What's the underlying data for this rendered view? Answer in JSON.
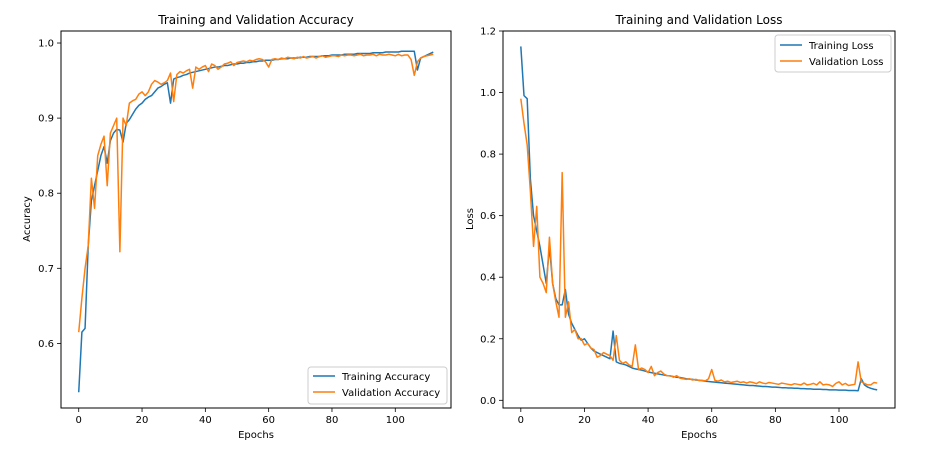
{
  "colors": {
    "train": "#1f77b4",
    "val": "#ff7f0e",
    "frame": "#000000",
    "legend_border": "#cccccc"
  },
  "chart_data": [
    {
      "type": "line",
      "title": "Training and Validation Accuracy",
      "xlabel": "Epochs",
      "ylabel": "Accuracy",
      "xlim": [
        -5.6,
        117.6
      ],
      "ylim": [
        0.514,
        1.016
      ],
      "xticks": [
        0,
        20,
        40,
        60,
        80,
        100
      ],
      "xtick_labels": [
        "0",
        "20",
        "40",
        "60",
        "80",
        "100"
      ],
      "yticks": [
        0.6,
        0.7,
        0.8,
        0.9,
        1.0
      ],
      "ytick_labels": [
        "0.6",
        "0.7",
        "0.8",
        "0.9",
        "1.0"
      ],
      "legend_loc": "lower-right",
      "series": [
        {
          "name": "Training Accuracy",
          "x": [
            0,
            1,
            2,
            3,
            4,
            5,
            6,
            7,
            8,
            9,
            10,
            11,
            12,
            13,
            14,
            15,
            16,
            17,
            18,
            19,
            20,
            21,
            22,
            23,
            24,
            25,
            26,
            27,
            28,
            29,
            30,
            31,
            32,
            33,
            34,
            35,
            36,
            37,
            38,
            39,
            40,
            41,
            42,
            43,
            44,
            45,
            46,
            47,
            48,
            49,
            50,
            51,
            52,
            53,
            54,
            55,
            56,
            57,
            58,
            59,
            60,
            61,
            62,
            63,
            64,
            65,
            66,
            67,
            68,
            69,
            70,
            71,
            72,
            73,
            74,
            75,
            76,
            77,
            78,
            79,
            80,
            81,
            82,
            83,
            84,
            85,
            86,
            87,
            88,
            89,
            90,
            91,
            92,
            93,
            94,
            95,
            96,
            97,
            98,
            99,
            100,
            101,
            102,
            103,
            104,
            105,
            106,
            107,
            108,
            109,
            110,
            111,
            112
          ],
          "y": [
            0.535,
            0.615,
            0.62,
            0.73,
            0.79,
            0.81,
            0.83,
            0.85,
            0.862,
            0.84,
            0.87,
            0.88,
            0.885,
            0.884,
            0.868,
            0.893,
            0.898,
            0.905,
            0.912,
            0.917,
            0.92,
            0.925,
            0.928,
            0.93,
            0.935,
            0.94,
            0.942,
            0.945,
            0.947,
            0.92,
            0.952,
            0.954,
            0.955,
            0.957,
            0.958,
            0.96,
            0.961,
            0.962,
            0.963,
            0.964,
            0.965,
            0.966,
            0.967,
            0.968,
            0.968,
            0.969,
            0.97,
            0.97,
            0.971,
            0.972,
            0.972,
            0.973,
            0.973,
            0.974,
            0.974,
            0.975,
            0.975,
            0.976,
            0.976,
            0.977,
            0.977,
            0.977,
            0.978,
            0.978,
            0.979,
            0.979,
            0.979,
            0.98,
            0.98,
            0.98,
            0.981,
            0.981,
            0.981,
            0.982,
            0.982,
            0.982,
            0.982,
            0.983,
            0.983,
            0.983,
            0.984,
            0.984,
            0.984,
            0.984,
            0.985,
            0.985,
            0.985,
            0.985,
            0.986,
            0.986,
            0.986,
            0.986,
            0.986,
            0.987,
            0.987,
            0.987,
            0.987,
            0.988,
            0.988,
            0.988,
            0.988,
            0.988,
            0.989,
            0.989,
            0.989,
            0.989,
            0.989,
            0.964,
            0.98,
            0.982,
            0.984,
            0.986,
            0.988
          ]
        },
        {
          "name": "Validation Accuracy",
          "x": [
            0,
            1,
            2,
            3,
            4,
            5,
            6,
            7,
            8,
            9,
            10,
            11,
            12,
            13,
            14,
            15,
            16,
            17,
            18,
            19,
            20,
            21,
            22,
            23,
            24,
            25,
            26,
            27,
            28,
            29,
            30,
            31,
            32,
            33,
            34,
            35,
            36,
            37,
            38,
            39,
            40,
            41,
            42,
            43,
            44,
            45,
            46,
            47,
            48,
            49,
            50,
            51,
            52,
            53,
            54,
            55,
            56,
            57,
            58,
            59,
            60,
            61,
            62,
            63,
            64,
            65,
            66,
            67,
            68,
            69,
            70,
            71,
            72,
            73,
            74,
            75,
            76,
            77,
            78,
            79,
            80,
            81,
            82,
            83,
            84,
            85,
            86,
            87,
            88,
            89,
            90,
            91,
            92,
            93,
            94,
            95,
            96,
            97,
            98,
            99,
            100,
            101,
            102,
            103,
            104,
            105,
            106,
            107,
            108,
            109,
            110,
            111,
            112
          ],
          "y": [
            0.615,
            0.66,
            0.7,
            0.73,
            0.82,
            0.78,
            0.85,
            0.865,
            0.876,
            0.81,
            0.88,
            0.89,
            0.9,
            0.722,
            0.9,
            0.89,
            0.92,
            0.923,
            0.925,
            0.932,
            0.935,
            0.93,
            0.935,
            0.945,
            0.95,
            0.948,
            0.945,
            0.947,
            0.95,
            0.96,
            0.922,
            0.958,
            0.962,
            0.96,
            0.963,
            0.965,
            0.94,
            0.968,
            0.965,
            0.968,
            0.97,
            0.962,
            0.972,
            0.97,
            0.965,
            0.968,
            0.972,
            0.973,
            0.975,
            0.97,
            0.974,
            0.975,
            0.976,
            0.975,
            0.977,
            0.976,
            0.978,
            0.979,
            0.978,
            0.975,
            0.968,
            0.978,
            0.979,
            0.978,
            0.98,
            0.979,
            0.981,
            0.98,
            0.979,
            0.981,
            0.98,
            0.982,
            0.98,
            0.981,
            0.982,
            0.98,
            0.982,
            0.983,
            0.981,
            0.982,
            0.983,
            0.983,
            0.982,
            0.984,
            0.983,
            0.984,
            0.984,
            0.983,
            0.984,
            0.985,
            0.983,
            0.984,
            0.984,
            0.985,
            0.983,
            0.985,
            0.984,
            0.984,
            0.985,
            0.984,
            0.983,
            0.985,
            0.983,
            0.984,
            0.984,
            0.978,
            0.957,
            0.975,
            0.98,
            0.982,
            0.983,
            0.984,
            0.985
          ]
        }
      ]
    },
    {
      "type": "line",
      "title": "Training and Validation Loss",
      "xlabel": "Epochs",
      "ylabel": "Loss",
      "xlim": [
        -5.6,
        117.6
      ],
      "ylim": [
        -0.025,
        1.2
      ],
      "xticks": [
        0,
        20,
        40,
        60,
        80,
        100
      ],
      "xtick_labels": [
        "0",
        "20",
        "40",
        "60",
        "80",
        "100"
      ],
      "yticks": [
        0.0,
        0.2,
        0.4,
        0.6,
        0.8,
        1.0,
        1.2
      ],
      "ytick_labels": [
        "0.0",
        "0.2",
        "0.4",
        "0.6",
        "0.8",
        "1.0",
        "1.2"
      ],
      "legend_loc": "upper-right",
      "series": [
        {
          "name": "Training Loss",
          "x": [
            0,
            1,
            2,
            3,
            4,
            5,
            6,
            7,
            8,
            9,
            10,
            11,
            12,
            13,
            14,
            15,
            16,
            17,
            18,
            19,
            20,
            21,
            22,
            23,
            24,
            25,
            26,
            27,
            28,
            29,
            30,
            31,
            32,
            33,
            34,
            35,
            36,
            37,
            38,
            39,
            40,
            41,
            42,
            43,
            44,
            45,
            46,
            47,
            48,
            49,
            50,
            51,
            52,
            53,
            54,
            55,
            56,
            57,
            58,
            59,
            60,
            61,
            62,
            63,
            64,
            65,
            66,
            67,
            68,
            69,
            70,
            71,
            72,
            73,
            74,
            75,
            76,
            77,
            78,
            79,
            80,
            81,
            82,
            83,
            84,
            85,
            86,
            87,
            88,
            89,
            90,
            91,
            92,
            93,
            94,
            95,
            96,
            97,
            98,
            99,
            100,
            101,
            102,
            103,
            104,
            105,
            106,
            107,
            108,
            109,
            110,
            111,
            112
          ],
          "y": [
            1.15,
            0.99,
            0.98,
            0.72,
            0.6,
            0.55,
            0.5,
            0.44,
            0.38,
            0.5,
            0.38,
            0.33,
            0.31,
            0.31,
            0.36,
            0.28,
            0.25,
            0.23,
            0.21,
            0.195,
            0.2,
            0.185,
            0.17,
            0.16,
            0.155,
            0.15,
            0.145,
            0.14,
            0.135,
            0.225,
            0.125,
            0.12,
            0.118,
            0.115,
            0.11,
            0.105,
            0.102,
            0.1,
            0.098,
            0.095,
            0.092,
            0.09,
            0.088,
            0.086,
            0.084,
            0.082,
            0.08,
            0.079,
            0.077,
            0.075,
            0.074,
            0.072,
            0.07,
            0.069,
            0.068,
            0.066,
            0.065,
            0.064,
            0.062,
            0.061,
            0.06,
            0.059,
            0.058,
            0.057,
            0.056,
            0.055,
            0.054,
            0.053,
            0.052,
            0.051,
            0.05,
            0.049,
            0.048,
            0.048,
            0.047,
            0.046,
            0.045,
            0.045,
            0.044,
            0.043,
            0.043,
            0.042,
            0.041,
            0.041,
            0.04,
            0.04,
            0.039,
            0.039,
            0.038,
            0.038,
            0.037,
            0.037,
            0.036,
            0.036,
            0.036,
            0.035,
            0.035,
            0.034,
            0.034,
            0.034,
            0.033,
            0.033,
            0.033,
            0.032,
            0.032,
            0.032,
            0.031,
            0.07,
            0.05,
            0.043,
            0.039,
            0.036,
            0.034
          ]
        },
        {
          "name": "Validation Loss",
          "x": [
            0,
            1,
            2,
            3,
            4,
            5,
            6,
            7,
            8,
            9,
            10,
            11,
            12,
            13,
            14,
            15,
            16,
            17,
            18,
            19,
            20,
            21,
            22,
            23,
            24,
            25,
            26,
            27,
            28,
            29,
            30,
            31,
            32,
            33,
            34,
            35,
            36,
            37,
            38,
            39,
            40,
            41,
            42,
            43,
            44,
            45,
            46,
            47,
            48,
            49,
            50,
            51,
            52,
            53,
            54,
            55,
            56,
            57,
            58,
            59,
            60,
            61,
            62,
            63,
            64,
            65,
            66,
            67,
            68,
            69,
            70,
            71,
            72,
            73,
            74,
            75,
            76,
            77,
            78,
            79,
            80,
            81,
            82,
            83,
            84,
            85,
            86,
            87,
            88,
            89,
            90,
            91,
            92,
            93,
            94,
            95,
            96,
            97,
            98,
            99,
            100,
            101,
            102,
            103,
            104,
            105,
            106,
            107,
            108,
            109,
            110,
            111,
            112
          ],
          "y": [
            0.98,
            0.9,
            0.83,
            0.68,
            0.5,
            0.63,
            0.4,
            0.38,
            0.35,
            0.53,
            0.38,
            0.32,
            0.27,
            0.74,
            0.27,
            0.32,
            0.22,
            0.23,
            0.2,
            0.2,
            0.18,
            0.185,
            0.17,
            0.165,
            0.14,
            0.145,
            0.155,
            0.15,
            0.145,
            0.13,
            0.21,
            0.13,
            0.12,
            0.125,
            0.115,
            0.11,
            0.18,
            0.1,
            0.105,
            0.1,
            0.09,
            0.11,
            0.08,
            0.09,
            0.095,
            0.085,
            0.08,
            0.08,
            0.075,
            0.08,
            0.072,
            0.07,
            0.068,
            0.07,
            0.066,
            0.068,
            0.064,
            0.065,
            0.063,
            0.07,
            0.1,
            0.065,
            0.062,
            0.066,
            0.06,
            0.062,
            0.058,
            0.06,
            0.062,
            0.058,
            0.06,
            0.056,
            0.06,
            0.058,
            0.054,
            0.06,
            0.056,
            0.054,
            0.058,
            0.056,
            0.054,
            0.052,
            0.056,
            0.054,
            0.052,
            0.05,
            0.054,
            0.052,
            0.05,
            0.056,
            0.05,
            0.052,
            0.055,
            0.05,
            0.06,
            0.05,
            0.052,
            0.05,
            0.045,
            0.055,
            0.06,
            0.05,
            0.055,
            0.048,
            0.05,
            0.052,
            0.125,
            0.06,
            0.055,
            0.05,
            0.05,
            0.058,
            0.056
          ]
        }
      ]
    }
  ]
}
